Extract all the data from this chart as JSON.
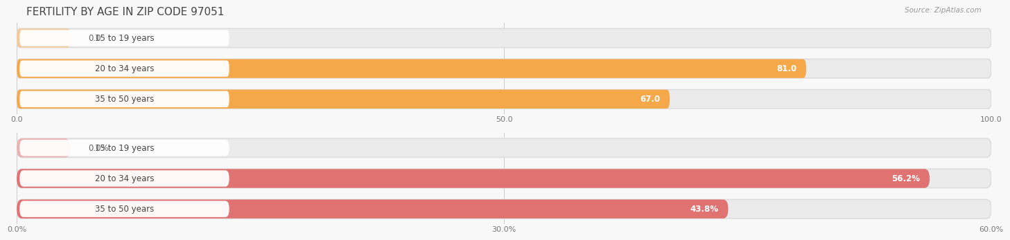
{
  "title": "FERTILITY BY AGE IN ZIP CODE 97051",
  "source": "Source: ZipAtlas.com",
  "top_chart": {
    "categories": [
      "15 to 19 years",
      "20 to 34 years",
      "35 to 50 years"
    ],
    "values": [
      0.0,
      81.0,
      67.0
    ],
    "xlim": [
      0,
      100
    ],
    "xticks": [
      0.0,
      50.0,
      100.0
    ],
    "bar_color": "#F5A84A",
    "bar_color_light": "#F5C99A",
    "bar_bg_color": "#EBEBEB",
    "value_label_inside_color": "#FFFFFF",
    "value_label_outside_color": "#666666"
  },
  "bottom_chart": {
    "categories": [
      "15 to 19 years",
      "20 to 34 years",
      "35 to 50 years"
    ],
    "values": [
      0.0,
      56.2,
      43.8
    ],
    "xlim": [
      0,
      60
    ],
    "xticks": [
      0.0,
      30.0,
      60.0
    ],
    "bar_color": "#E07272",
    "bar_color_light": "#EDB0B0",
    "bar_bg_color": "#EBEBEB",
    "value_label_inside_color": "#FFFFFF",
    "value_label_outside_color": "#666666"
  },
  "bg_color": "#F8F8F8",
  "title_color": "#444444",
  "title_fontsize": 11,
  "label_fontsize": 8.5,
  "tick_fontsize": 8,
  "source_fontsize": 7.5
}
